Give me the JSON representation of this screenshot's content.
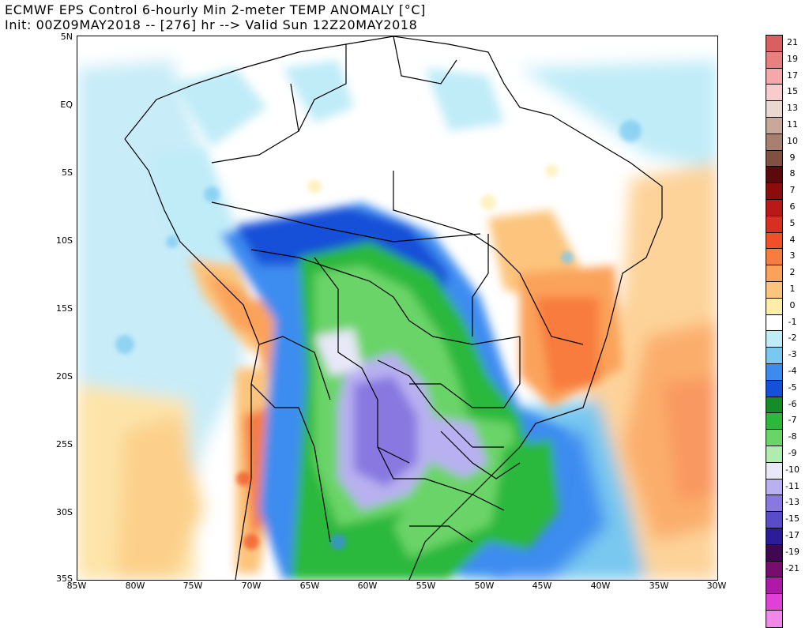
{
  "header": {
    "line1": "ECMWF EPS Control 6-hourly Min 2-meter TEMP ANOMALY [°C]",
    "line2": "Init: 00Z09MAY2018 -- [276] hr --> Valid Sun 12Z20MAY2018"
  },
  "map": {
    "lat_labels": [
      "5N",
      "EQ",
      "5S",
      "10S",
      "15S",
      "20S",
      "25S",
      "30S",
      "35S"
    ],
    "lon_labels": [
      "85W",
      "80W",
      "75W",
      "70W",
      "65W",
      "60W",
      "55W",
      "50W",
      "45W",
      "40W",
      "35W",
      "30W"
    ]
  },
  "colorbar": {
    "levels": [
      {
        "label": "21",
        "color": "#d86060"
      },
      {
        "label": "19",
        "color": "#e88080"
      },
      {
        "label": "17",
        "color": "#f4a8a8"
      },
      {
        "label": "15",
        "color": "#f8cccc"
      },
      {
        "label": "13",
        "color": "#e8d8d0"
      },
      {
        "label": "11",
        "color": "#c8a898"
      },
      {
        "label": "10",
        "color": "#a88070"
      },
      {
        "label": "9",
        "color": "#805040"
      },
      {
        "label": "8",
        "color": "#5a0a0a"
      },
      {
        "label": "7",
        "color": "#8c0c0c"
      },
      {
        "label": "6",
        "color": "#b81818"
      },
      {
        "label": "5",
        "color": "#d83020"
      },
      {
        "label": "4",
        "color": "#f05028"
      },
      {
        "label": "3",
        "color": "#f87c3c"
      },
      {
        "label": "2",
        "color": "#fba25a"
      },
      {
        "label": "1",
        "color": "#fcc47c"
      },
      {
        "label": "0",
        "color": "#fdecaa"
      },
      {
        "label": "-1",
        "color": "#ffffff"
      },
      {
        "label": "-2",
        "color": "#c0ecf8"
      },
      {
        "label": "-3",
        "color": "#78c8f0"
      },
      {
        "label": "-4",
        "color": "#3c8cf0"
      },
      {
        "label": "-5",
        "color": "#1450d8"
      },
      {
        "label": "-6",
        "color": "#148c28"
      },
      {
        "label": "-7",
        "color": "#2cb83c"
      },
      {
        "label": "-8",
        "color": "#6ad468"
      },
      {
        "label": "-9",
        "color": "#b0ecb0"
      },
      {
        "label": "-10",
        "color": "#e8e8f8"
      },
      {
        "label": "-11",
        "color": "#b8b0f0"
      },
      {
        "label": "-13",
        "color": "#8878e0"
      },
      {
        "label": "-15",
        "color": "#5a4cc8"
      },
      {
        "label": "-17",
        "color": "#2c1c98"
      },
      {
        "label": "-19",
        "color": "#400850"
      },
      {
        "label": "-21",
        "color": "#780c70"
      },
      {
        "label": "",
        "color": "#b018a8"
      },
      {
        "label": "",
        "color": "#e040d8"
      },
      {
        "label": "",
        "color": "#f088e8"
      }
    ]
  }
}
